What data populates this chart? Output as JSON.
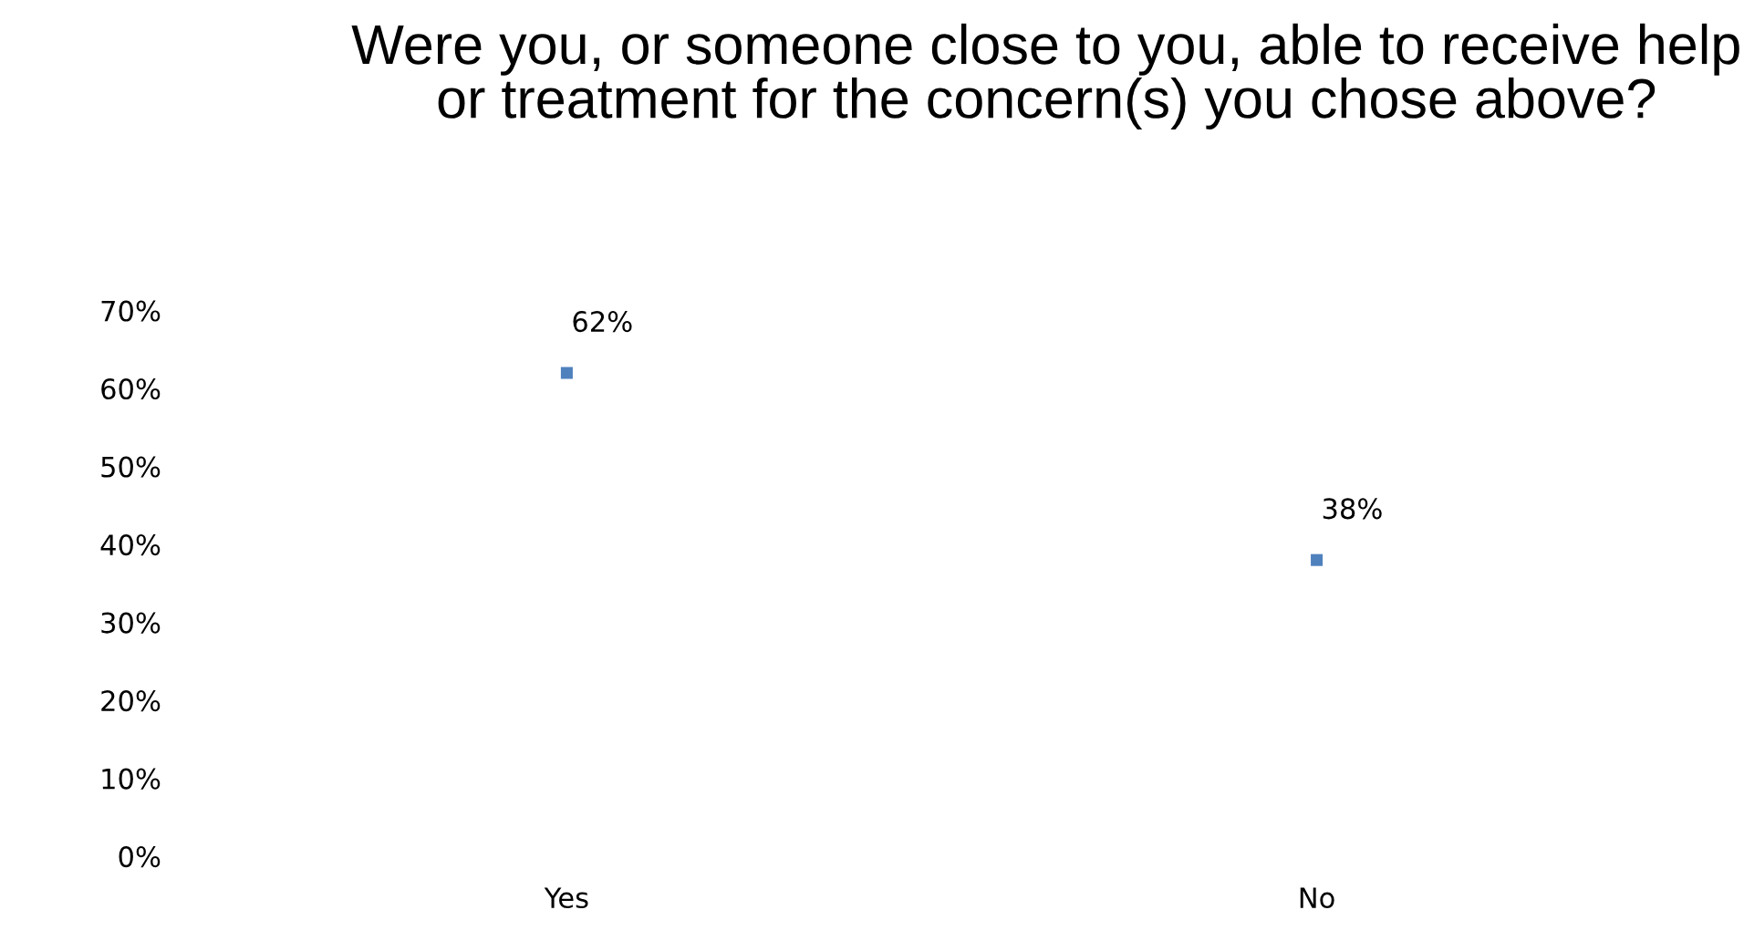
{
  "chart_data": {
    "type": "scatter",
    "title": "Were you, or someone close to you, able to receive help or treatment for the concern(s) you chose above?",
    "categories": [
      "Yes",
      "No"
    ],
    "series": [
      {
        "color": "#4f81bd",
        "values": [
          62,
          38
        ],
        "value_labels": [
          "62%",
          "38%"
        ]
      }
    ],
    "marker": "square",
    "ylim": [
      0,
      70
    ],
    "yticks": [
      {
        "value": 0,
        "label": "0%"
      },
      {
        "value": 10,
        "label": "10%"
      },
      {
        "value": 20,
        "label": "20%"
      },
      {
        "value": 30,
        "label": "30%"
      },
      {
        "value": 40,
        "label": "40%"
      },
      {
        "value": 50,
        "label": "50%"
      },
      {
        "value": 60,
        "label": "60%"
      },
      {
        "value": 70,
        "label": "70%"
      }
    ],
    "grid": false,
    "legend": false
  }
}
